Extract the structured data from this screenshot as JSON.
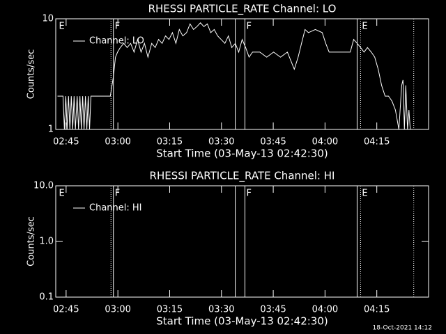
{
  "chart_data": [
    {
      "type": "line",
      "title": "RHESSI PARTICLE_RATE Channel: LO",
      "ylabel": "Counts/sec",
      "xlabel": "Start Time (03-May-13 02:42:30)",
      "ylog": true,
      "ylim": [
        1,
        10
      ],
      "yticks": [
        1,
        10
      ],
      "xlim": [
        -0.5,
        107.5
      ],
      "xticks": [
        {
          "value": 2.5,
          "label": "02:45"
        },
        {
          "value": 17.5,
          "label": "03:00"
        },
        {
          "value": 32.5,
          "label": "03:15"
        },
        {
          "value": 47.5,
          "label": "03:30"
        },
        {
          "value": 62.5,
          "label": "03:45"
        },
        {
          "value": 77.5,
          "label": "04:00"
        },
        {
          "value": 92.5,
          "label": "04:15"
        }
      ],
      "legend": "upper left",
      "flags": [
        {
          "x": 0,
          "label": "E"
        },
        {
          "x": 16.2,
          "label": "F"
        },
        {
          "x": 54.3,
          "label": "F"
        },
        {
          "x": 87.8,
          "label": "E"
        }
      ],
      "vlines": [
        {
          "x": 15.5,
          "style": "dotted"
        },
        {
          "x": 16.2,
          "style": "solid"
        },
        {
          "x": 51.5,
          "style": "solid"
        },
        {
          "x": 54.3,
          "style": "solid"
        },
        {
          "x": 86.8,
          "style": "solid"
        },
        {
          "x": 87.8,
          "style": "dotted"
        },
        {
          "x": 103.2,
          "style": "dotted"
        }
      ],
      "series": [
        {
          "name": "Channel: LO",
          "color": "#ffffff",
          "x": [
            0,
            1.6,
            2.0,
            2.4,
            2.8,
            3.2,
            3.6,
            4.0,
            4.4,
            4.8,
            5.2,
            5.7,
            6.1,
            6.5,
            6.9,
            7.3,
            7.7,
            8.1,
            8.5,
            8.9,
            9.3,
            9.7,
            10.1,
            15.3,
            15.7,
            16.2,
            16.8,
            17.4,
            18.2,
            19.2,
            20.2,
            21.2,
            22.2,
            23.2,
            24.2,
            25.2,
            26.2,
            27.3,
            28.3,
            29.3,
            30.3,
            31.3,
            32.3,
            33.3,
            34.3,
            35.3,
            36.3,
            37.4,
            38.4,
            39.4,
            40.4,
            41.4,
            42.4,
            43.4,
            44.4,
            45.4,
            46.4,
            47.4,
            48.5,
            49.5,
            50.5,
            51.5,
            52.5,
            53.5,
            54.5,
            55.5,
            56.5,
            58.6,
            60.6,
            62.6,
            64.6,
            66.6,
            68.6,
            69.7,
            70.7,
            71.7,
            72.7,
            74.7,
            76.7,
            77.7,
            78.7,
            80.8,
            82.8,
            84.8,
            85.8,
            86.8,
            87.8,
            88.8,
            89.8,
            90.9,
            91.9,
            92.9,
            93.9,
            94.9,
            95.9,
            96.9,
            97.9,
            98.9,
            99.7,
            100.1,
            100.5,
            100.9,
            101.4,
            101.8,
            102.2
          ],
          "values": [
            2,
            2,
            1,
            2,
            1,
            2,
            1,
            2,
            1,
            2,
            1,
            2,
            1,
            2,
            1,
            2,
            1,
            2,
            1,
            2,
            1,
            2,
            2,
            2,
            2.4,
            3,
            4.5,
            5,
            5.5,
            6,
            5.5,
            6,
            5,
            6.5,
            5,
            6,
            4.5,
            6,
            5.5,
            6.5,
            6,
            7,
            6.5,
            7.5,
            6,
            8,
            7,
            7.5,
            9,
            8,
            8.5,
            9.2,
            8.5,
            9,
            7.5,
            8,
            7,
            6.5,
            6,
            7,
            5.5,
            6,
            5,
            6.5,
            5.5,
            4.5,
            5,
            5,
            4.5,
            5,
            4.5,
            5,
            3.5,
            4.5,
            6,
            8,
            7.5,
            8,
            7.5,
            6,
            5,
            5,
            5,
            5,
            6.5,
            6,
            5.5,
            5,
            5.5,
            5,
            4.5,
            3.5,
            2.5,
            2,
            2,
            1.8,
            1.5,
            1,
            2.5,
            2.8,
            1,
            2.5,
            1,
            1.5,
            1
          ]
        }
      ]
    },
    {
      "type": "line",
      "title": "RHESSI PARTICLE_RATE Channel: HI",
      "ylabel": "Counts/sec",
      "xlabel": "Start Time (03-May-13 02:42:30)",
      "ylog": true,
      "ylim": [
        0.1,
        10
      ],
      "yticks": [
        {
          "value": 0.1,
          "label": "0.1"
        },
        {
          "value": 1,
          "label": "1.0"
        },
        {
          "value": 10,
          "label": "10.0"
        }
      ],
      "xlim": [
        -0.5,
        107.5
      ],
      "xticks": [
        {
          "value": 2.5,
          "label": "02:45"
        },
        {
          "value": 17.5,
          "label": "03:00"
        },
        {
          "value": 32.5,
          "label": "03:15"
        },
        {
          "value": 47.5,
          "label": "03:30"
        },
        {
          "value": 62.5,
          "label": "03:45"
        },
        {
          "value": 77.5,
          "label": "04:00"
        },
        {
          "value": 92.5,
          "label": "04:15"
        }
      ],
      "legend": "upper left",
      "flags": [
        {
          "x": 0,
          "label": "E"
        },
        {
          "x": 16.2,
          "label": "F"
        },
        {
          "x": 54.3,
          "label": "F"
        },
        {
          "x": 87.8,
          "label": "E"
        }
      ],
      "vlines": [
        {
          "x": 15.5,
          "style": "dotted"
        },
        {
          "x": 16.2,
          "style": "solid"
        },
        {
          "x": 51.5,
          "style": "solid"
        },
        {
          "x": 54.3,
          "style": "solid"
        },
        {
          "x": 86.8,
          "style": "solid"
        },
        {
          "x": 87.8,
          "style": "dotted"
        },
        {
          "x": 103.2,
          "style": "dotted"
        }
      ],
      "series": [
        {
          "name": "Channel: HI",
          "color": "#ffffff",
          "x": [],
          "values": []
        }
      ]
    }
  ],
  "footer": "18-Oct-2021 14:12"
}
